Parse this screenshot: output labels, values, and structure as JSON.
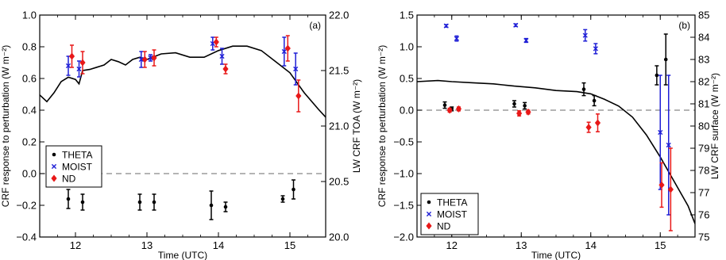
{
  "chart_data": [
    {
      "type": "line+scatter",
      "panel_label": "(a)",
      "xlabel": "Time (UTC)",
      "ylabel": "CRF response to perturbation (W m⁻²)",
      "y2label": "LW CRF TOA (W m⁻²)",
      "xlim": [
        11.5,
        15.5
      ],
      "ylim": [
        -0.4,
        1.0
      ],
      "y2lim": [
        20.0,
        22.0
      ],
      "xticks": [
        12,
        13,
        14,
        15
      ],
      "xtick_labels": [
        "12",
        "13",
        "14",
        "15"
      ],
      "yticks": [
        -0.4,
        -0.2,
        0.0,
        0.2,
        0.4,
        0.6,
        0.8,
        1.0
      ],
      "ytick_labels": [
        "−0.4",
        "−0.2",
        "0.0",
        "0.2",
        "0.4",
        "0.6",
        "0.8",
        "1.0"
      ],
      "y2ticks": [
        20.0,
        20.5,
        21.0,
        21.5,
        22.0
      ],
      "y2tick_labels": [
        "20.0",
        "20.5",
        "21.0",
        "21.5",
        "22.0"
      ],
      "zero_line": 0.0,
      "legend": {
        "position": "middle-left",
        "entries": [
          "THETA",
          "MOIST",
          "ND"
        ]
      },
      "series": [
        {
          "name": "THETA",
          "marker": "dot",
          "color": "#000000",
          "x": [
            11.9,
            12.1,
            12.9,
            13.1,
            13.9,
            14.1,
            14.9,
            15.05
          ],
          "y": [
            -0.16,
            -0.18,
            -0.18,
            -0.18,
            -0.2,
            -0.21,
            -0.16,
            -0.1
          ],
          "err": [
            0.06,
            0.05,
            0.05,
            0.05,
            0.09,
            0.03,
            0.02,
            0.06
          ]
        },
        {
          "name": "MOIST",
          "marker": "x",
          "color": "#1f1fd6",
          "x": [
            11.9,
            12.05,
            12.92,
            13.05,
            13.92,
            14.05,
            14.92,
            15.08
          ],
          "y": [
            0.68,
            0.66,
            0.72,
            0.73,
            0.82,
            0.74,
            0.77,
            0.66
          ],
          "err": [
            0.06,
            0.05,
            0.05,
            0.02,
            0.04,
            0.05,
            0.09,
            0.1
          ]
        },
        {
          "name": "ND",
          "marker": "diamond",
          "color": "#e81818",
          "x": [
            11.95,
            12.1,
            12.97,
            13.1,
            13.97,
            14.1,
            14.97,
            15.12
          ],
          "y": [
            0.74,
            0.7,
            0.72,
            0.73,
            0.83,
            0.66,
            0.79,
            0.49
          ],
          "err": [
            0.07,
            0.07,
            0.05,
            0.05,
            0.03,
            0.03,
            0.08,
            0.1
          ]
        },
        {
          "name": "LW CRF TOA",
          "axis": "y2",
          "line": true,
          "color": "#000000",
          "x": [
            11.5,
            11.6,
            11.7,
            11.8,
            11.9,
            12.0,
            12.05,
            12.1,
            12.2,
            12.3,
            12.4,
            12.5,
            12.6,
            12.7,
            12.8,
            12.9,
            13.0,
            13.2,
            13.4,
            13.6,
            13.8,
            14.0,
            14.2,
            14.4,
            14.6,
            14.8,
            15.0,
            15.2,
            15.4,
            15.5
          ],
          "y": [
            21.28,
            21.22,
            21.3,
            21.4,
            21.44,
            21.42,
            21.38,
            21.5,
            21.51,
            21.53,
            21.55,
            21.6,
            21.58,
            21.55,
            21.6,
            21.62,
            21.6,
            21.65,
            21.66,
            21.62,
            21.62,
            21.68,
            21.72,
            21.72,
            21.68,
            21.58,
            21.48,
            21.3,
            21.15,
            21.08
          ]
        }
      ]
    },
    {
      "type": "line+scatter",
      "panel_label": "(b)",
      "xlabel": "Time (UTC)",
      "ylabel": "CRF response to perturbation (W m⁻²)",
      "y2label": "LW CRF surface (W m⁻²)",
      "xlim": [
        11.5,
        15.5
      ],
      "ylim": [
        -2.0,
        1.5
      ],
      "y2lim": [
        75,
        85
      ],
      "xticks": [
        12,
        13,
        14,
        15
      ],
      "xtick_labels": [
        "12",
        "13",
        "14",
        "15"
      ],
      "yticks": [
        -2.0,
        -1.5,
        -1.0,
        -0.5,
        0.0,
        0.5,
        1.0,
        1.5
      ],
      "ytick_labels": [
        "−2.0",
        "−1.5",
        "−1.0",
        "−0.5",
        "0.0",
        "0.5",
        "1.0",
        "1.5"
      ],
      "y2ticks": [
        75,
        76,
        77,
        78,
        79,
        80,
        81,
        82,
        83,
        84,
        85
      ],
      "y2tick_labels": [
        "75",
        "76",
        "77",
        "78",
        "79",
        "80",
        "81",
        "82",
        "83",
        "84",
        "85"
      ],
      "zero_line": 0.0,
      "legend": {
        "position": "lower-left",
        "entries": [
          "THETA",
          "MOIST",
          "ND"
        ]
      },
      "series": [
        {
          "name": "THETA",
          "marker": "dot",
          "color": "#000000",
          "x": [
            11.9,
            12.0,
            12.9,
            13.05,
            13.9,
            14.05,
            14.95,
            15.08
          ],
          "y": [
            0.08,
            0.02,
            0.1,
            0.07,
            0.33,
            0.15,
            0.55,
            0.8
          ],
          "err": [
            0.05,
            0.03,
            0.05,
            0.05,
            0.1,
            0.08,
            0.15,
            0.4
          ]
        },
        {
          "name": "MOIST",
          "marker": "x",
          "color": "#1f1fd6",
          "x": [
            11.92,
            12.07,
            12.92,
            13.07,
            13.92,
            14.07,
            15.0,
            15.12
          ],
          "y": [
            1.33,
            1.13,
            1.34,
            1.1,
            1.18,
            0.97,
            -0.35,
            -0.55
          ],
          "err": [
            0.02,
            0.04,
            0.02,
            0.03,
            0.09,
            0.08,
            0.9,
            1.1
          ]
        },
        {
          "name": "ND",
          "marker": "diamond",
          "color": "#e81818",
          "x": [
            11.97,
            12.1,
            12.97,
            13.1,
            13.97,
            14.1,
            15.02,
            15.15
          ],
          "y": [
            0.0,
            0.02,
            -0.05,
            -0.03,
            -0.27,
            -0.2,
            -1.18,
            -1.25
          ],
          "err": [
            0.03,
            0.03,
            0.04,
            0.03,
            0.08,
            0.14,
            0.35,
            0.65
          ]
        },
        {
          "name": "LW CRF surface",
          "axis": "y2",
          "line": true,
          "color": "#000000",
          "x": [
            11.5,
            11.8,
            12.0,
            12.3,
            12.6,
            12.9,
            13.2,
            13.5,
            13.8,
            14.0,
            14.2,
            14.4,
            14.6,
            14.8,
            15.0,
            15.2,
            15.4,
            15.5
          ],
          "y": [
            82.0,
            82.05,
            82.0,
            81.95,
            81.9,
            81.8,
            81.72,
            81.6,
            81.55,
            81.45,
            81.2,
            80.9,
            80.4,
            79.6,
            78.6,
            77.5,
            76.4,
            75.6
          ]
        }
      ]
    }
  ]
}
